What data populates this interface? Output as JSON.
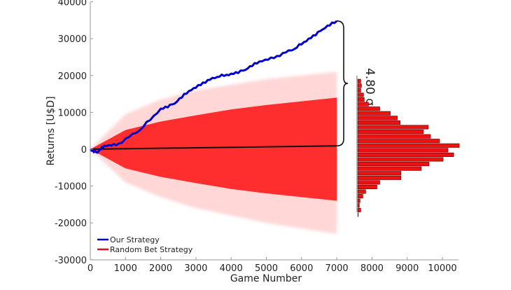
{
  "chart_data": {
    "type": "line",
    "title": "",
    "xlabel": "Game Number",
    "ylabel": "Returns [U$D]",
    "xlim": [
      0,
      10500
    ],
    "ylim": [
      -30000,
      40000
    ],
    "x_ticks": [
      0,
      1000,
      2000,
      3000,
      4000,
      5000,
      6000,
      7000,
      8000,
      9000,
      10000
    ],
    "y_ticks": [
      -30000,
      -20000,
      -10000,
      0,
      10000,
      20000,
      30000,
      40000
    ],
    "grid": false,
    "legend_position": "lower left",
    "legend": [
      "Our Strategy",
      "Random Bet Strategy"
    ],
    "annotation": "4.80 σ",
    "series": [
      {
        "name": "Our Strategy",
        "color": "#0000cc",
        "x": [
          0,
          200,
          400,
          800,
          1400,
          2000,
          2400,
          2800,
          3200,
          3600,
          4000,
          4400,
          4800,
          5300,
          5800,
          6200,
          6600,
          7000
        ],
        "y": [
          0,
          -950,
          950,
          1500,
          5100,
          11000,
          12400,
          15800,
          18100,
          19600,
          20500,
          21500,
          23800,
          25300,
          27200,
          30000,
          32500,
          34800
        ]
      },
      {
        "name": "Random Bet Strategy (mean)",
        "color": "#000000",
        "x": [
          0,
          7000
        ],
        "y": [
          0,
          900
        ]
      },
      {
        "name": "Random Bet Strategy (envelope)",
        "color": "#ff2a2a",
        "x": [
          0,
          1000,
          2000,
          3000,
          4000,
          5000,
          6000,
          7000
        ],
        "upper_dense": [
          0,
          5200,
          7500,
          9200,
          10800,
          12000,
          13000,
          14000
        ],
        "lower_dense": [
          0,
          -5200,
          -7500,
          -9200,
          -10800,
          -12000,
          -13000,
          -14000
        ],
        "upper_faint": [
          0,
          9500,
          13500,
          16000,
          17500,
          19000,
          20000,
          21000
        ],
        "lower_faint": [
          0,
          -9000,
          -13000,
          -16000,
          -18000,
          -20000,
          -21500,
          -23000
        ]
      }
    ],
    "histogram": {
      "orientation": "horizontal",
      "baseline_x": 7600,
      "color": "#ee1111",
      "bin_top_returns": 19000,
      "bin_height_returns": 1250,
      "counts_x_end": [
        7680,
        7700,
        7680,
        7760,
        7780,
        7900,
        8220,
        8520,
        8720,
        8800,
        9600,
        9460,
        9660,
        9920,
        10480,
        10160,
        10320,
        10020,
        9620,
        9400,
        8820,
        8820,
        8220,
        8140,
        7820,
        7740,
        7660,
        7640,
        7680,
        7610
      ]
    }
  }
}
